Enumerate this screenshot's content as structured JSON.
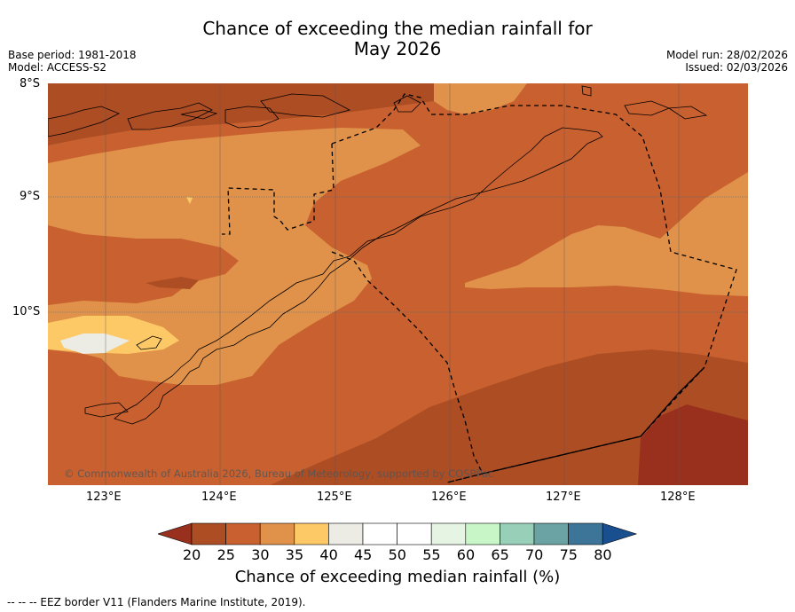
{
  "title_line1": "Chance of exceeding the median rainfall for",
  "title_line2": "May 2026",
  "base_period": "Base period: 1981-2018",
  "model": "Model: ACCESS-S2",
  "model_run": "Model run: 28/02/2026",
  "issued": "Issued: 02/03/2026",
  "lat_labels": [
    "8°S",
    "9°S",
    "10°S"
  ],
  "lon_labels": [
    "123°E",
    "124°E",
    "125°E",
    "126°E",
    "127°E",
    "128°E"
  ],
  "copyright": "© Commonwealth of Australia 2026, Bureau of Meteorology, supported by COSPPac",
  "colorbar": {
    "ticks": [
      "20",
      "25",
      "30",
      "35",
      "40",
      "45",
      "50",
      "55",
      "60",
      "65",
      "70",
      "75",
      "80"
    ],
    "colors": [
      "#ad4d24",
      "#c8612f",
      "#e0924a",
      "#fdc966",
      "#ecebe4",
      "#ffffff",
      "#ffffff",
      "#e6f4e3",
      "#c9f6c7",
      "#97cfb8",
      "#6ba2a4",
      "#3d7598"
    ],
    "under_color": "#99301d",
    "over_color": "#1a4f8f",
    "label": "Chance of exceeding median rainfall (%)"
  },
  "footer": "--  --  -- EEZ border V11 (Flanders Marine Institute, 2019).",
  "colors": {
    "c20": "#99301d",
    "c25": "#ad4d24",
    "c30": "#c8612f",
    "c35": "#e0924a",
    "c40": "#fdc966",
    "c45": "#ecebe4"
  }
}
